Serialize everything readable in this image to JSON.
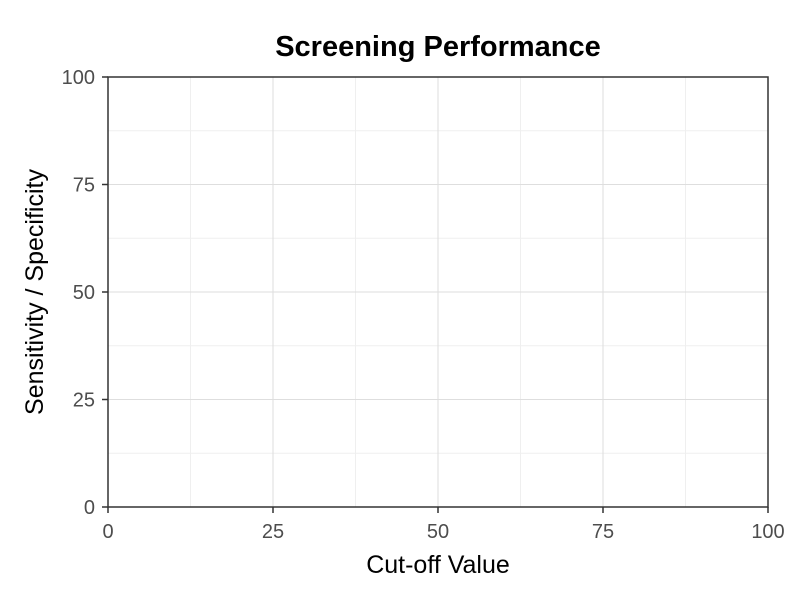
{
  "chart_data": {
    "type": "line",
    "title": "Screening Performance",
    "xlabel": "Cut-off Value",
    "ylabel": "Sensitivity / Specificity",
    "xlim": [
      0,
      100
    ],
    "ylim": [
      0,
      100
    ],
    "x_ticks": [
      0,
      25,
      50,
      75,
      100
    ],
    "y_ticks": [
      0,
      25,
      50,
      75,
      100
    ],
    "x_minor_ticks": [
      12.5,
      37.5,
      62.5,
      87.5
    ],
    "y_minor_ticks": [
      12.5,
      37.5,
      62.5,
      87.5
    ],
    "grid": true,
    "series": [],
    "colors": {
      "background": "#ffffff",
      "grid_major": "#dedede",
      "grid_minor": "#efefef",
      "border": "#333333",
      "tick_text": "#4d4d4d",
      "text": "#000000"
    }
  }
}
